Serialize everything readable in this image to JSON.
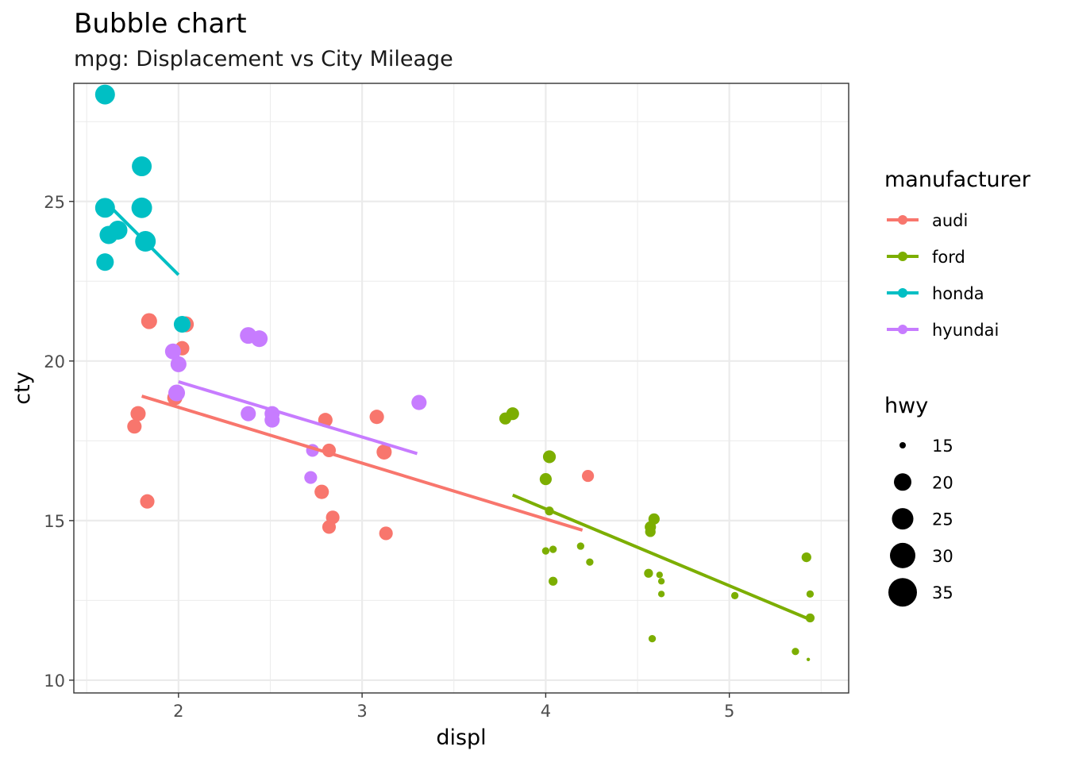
{
  "chart_data": {
    "type": "scatter",
    "title": "Bubble chart",
    "subtitle": "mpg: Displacement vs City Mileage",
    "xlabel": "displ",
    "ylabel": "cty",
    "xlim": [
      1.43,
      5.65
    ],
    "ylim": [
      9.6,
      28.7
    ],
    "x_ticks": [
      2,
      3,
      4,
      5
    ],
    "y_ticks": [
      10,
      15,
      20,
      25
    ],
    "grid": true,
    "legend_placement": "right",
    "color_legend": {
      "title": "manufacturer",
      "entries": [
        {
          "name": "audi",
          "color": "#F8766D"
        },
        {
          "name": "ford",
          "color": "#7CAE00"
        },
        {
          "name": "honda",
          "color": "#00BFC4"
        },
        {
          "name": "hyundai",
          "color": "#C77CFF"
        }
      ]
    },
    "size_legend": {
      "title": "hwy",
      "values": [
        15,
        20,
        25,
        30,
        35
      ]
    },
    "series": [
      {
        "name": "audi",
        "color": "#F8766D",
        "trend": [
          [
            1.8,
            18.9
          ],
          [
            4.2,
            14.7
          ]
        ],
        "points": [
          {
            "x": 1.84,
            "y": 21.25,
            "size": 28
          },
          {
            "x": 2.04,
            "y": 21.15,
            "size": 28
          },
          {
            "x": 2.02,
            "y": 20.4,
            "size": 26
          },
          {
            "x": 1.78,
            "y": 18.35,
            "size": 27
          },
          {
            "x": 1.76,
            "y": 17.95,
            "size": 26
          },
          {
            "x": 1.98,
            "y": 18.85,
            "size": 27
          },
          {
            "x": 1.83,
            "y": 15.6,
            "size": 26
          },
          {
            "x": 2.8,
            "y": 18.15,
            "size": 26
          },
          {
            "x": 2.82,
            "y": 17.2,
            "size": 25
          },
          {
            "x": 2.78,
            "y": 15.9,
            "size": 26
          },
          {
            "x": 2.84,
            "y": 15.1,
            "size": 25
          },
          {
            "x": 2.82,
            "y": 14.8,
            "size": 25
          },
          {
            "x": 3.08,
            "y": 18.25,
            "size": 26
          },
          {
            "x": 3.12,
            "y": 17.15,
            "size": 27
          },
          {
            "x": 3.13,
            "y": 14.6,
            "size": 25
          },
          {
            "x": 4.23,
            "y": 16.4,
            "size": 23
          }
        ]
      },
      {
        "name": "ford",
        "color": "#7CAE00",
        "trend": [
          [
            3.82,
            15.8
          ],
          [
            5.44,
            11.9
          ]
        ],
        "points": [
          {
            "x": 3.78,
            "y": 18.2,
            "size": 23
          },
          {
            "x": 3.82,
            "y": 18.35,
            "size": 24
          },
          {
            "x": 4.02,
            "y": 17.0,
            "size": 24
          },
          {
            "x": 4.0,
            "y": 16.3,
            "size": 23
          },
          {
            "x": 4.02,
            "y": 15.3,
            "size": 19
          },
          {
            "x": 4.0,
            "y": 14.05,
            "size": 17
          },
          {
            "x": 4.04,
            "y": 14.1,
            "size": 17
          },
          {
            "x": 4.04,
            "y": 13.1,
            "size": 19
          },
          {
            "x": 4.19,
            "y": 14.2,
            "size": 17
          },
          {
            "x": 4.24,
            "y": 13.7,
            "size": 17
          },
          {
            "x": 4.57,
            "y": 14.8,
            "size": 22
          },
          {
            "x": 4.59,
            "y": 15.05,
            "size": 22
          },
          {
            "x": 4.57,
            "y": 14.65,
            "size": 21
          },
          {
            "x": 4.56,
            "y": 13.35,
            "size": 19
          },
          {
            "x": 4.62,
            "y": 13.3,
            "size": 16
          },
          {
            "x": 4.63,
            "y": 13.1,
            "size": 16
          },
          {
            "x": 4.63,
            "y": 12.7,
            "size": 16
          },
          {
            "x": 4.58,
            "y": 11.3,
            "size": 17
          },
          {
            "x": 5.03,
            "y": 12.65,
            "size": 17
          },
          {
            "x": 5.42,
            "y": 13.85,
            "size": 20
          },
          {
            "x": 5.44,
            "y": 12.7,
            "size": 17
          },
          {
            "x": 5.44,
            "y": 11.95,
            "size": 19
          },
          {
            "x": 5.36,
            "y": 10.9,
            "size": 17
          },
          {
            "x": 5.43,
            "y": 10.65,
            "size": 12
          }
        ]
      },
      {
        "name": "honda",
        "color": "#00BFC4",
        "trend": [
          [
            1.6,
            25.0
          ],
          [
            2.0,
            22.7
          ]
        ],
        "points": [
          {
            "x": 1.6,
            "y": 28.35,
            "size": 33
          },
          {
            "x": 1.8,
            "y": 26.1,
            "size": 33
          },
          {
            "x": 1.6,
            "y": 24.8,
            "size": 33
          },
          {
            "x": 1.8,
            "y": 24.8,
            "size": 34
          },
          {
            "x": 1.67,
            "y": 24.1,
            "size": 32
          },
          {
            "x": 1.62,
            "y": 23.95,
            "size": 31
          },
          {
            "x": 1.82,
            "y": 23.75,
            "size": 34
          },
          {
            "x": 1.6,
            "y": 23.1,
            "size": 30
          },
          {
            "x": 2.02,
            "y": 21.15,
            "size": 29
          }
        ]
      },
      {
        "name": "hyundai",
        "color": "#C77CFF",
        "trend": [
          [
            2.0,
            19.35
          ],
          [
            3.3,
            17.1
          ]
        ],
        "points": [
          {
            "x": 2.38,
            "y": 20.8,
            "size": 29
          },
          {
            "x": 2.44,
            "y": 20.7,
            "size": 29
          },
          {
            "x": 1.97,
            "y": 20.3,
            "size": 28
          },
          {
            "x": 2.0,
            "y": 19.9,
            "size": 28
          },
          {
            "x": 1.99,
            "y": 19.0,
            "size": 29
          },
          {
            "x": 2.38,
            "y": 18.35,
            "size": 27
          },
          {
            "x": 2.51,
            "y": 18.35,
            "size": 27
          },
          {
            "x": 2.51,
            "y": 18.15,
            "size": 27
          },
          {
            "x": 3.31,
            "y": 18.7,
            "size": 27
          },
          {
            "x": 2.73,
            "y": 17.2,
            "size": 24
          },
          {
            "x": 2.72,
            "y": 16.35,
            "size": 24
          }
        ]
      }
    ]
  }
}
